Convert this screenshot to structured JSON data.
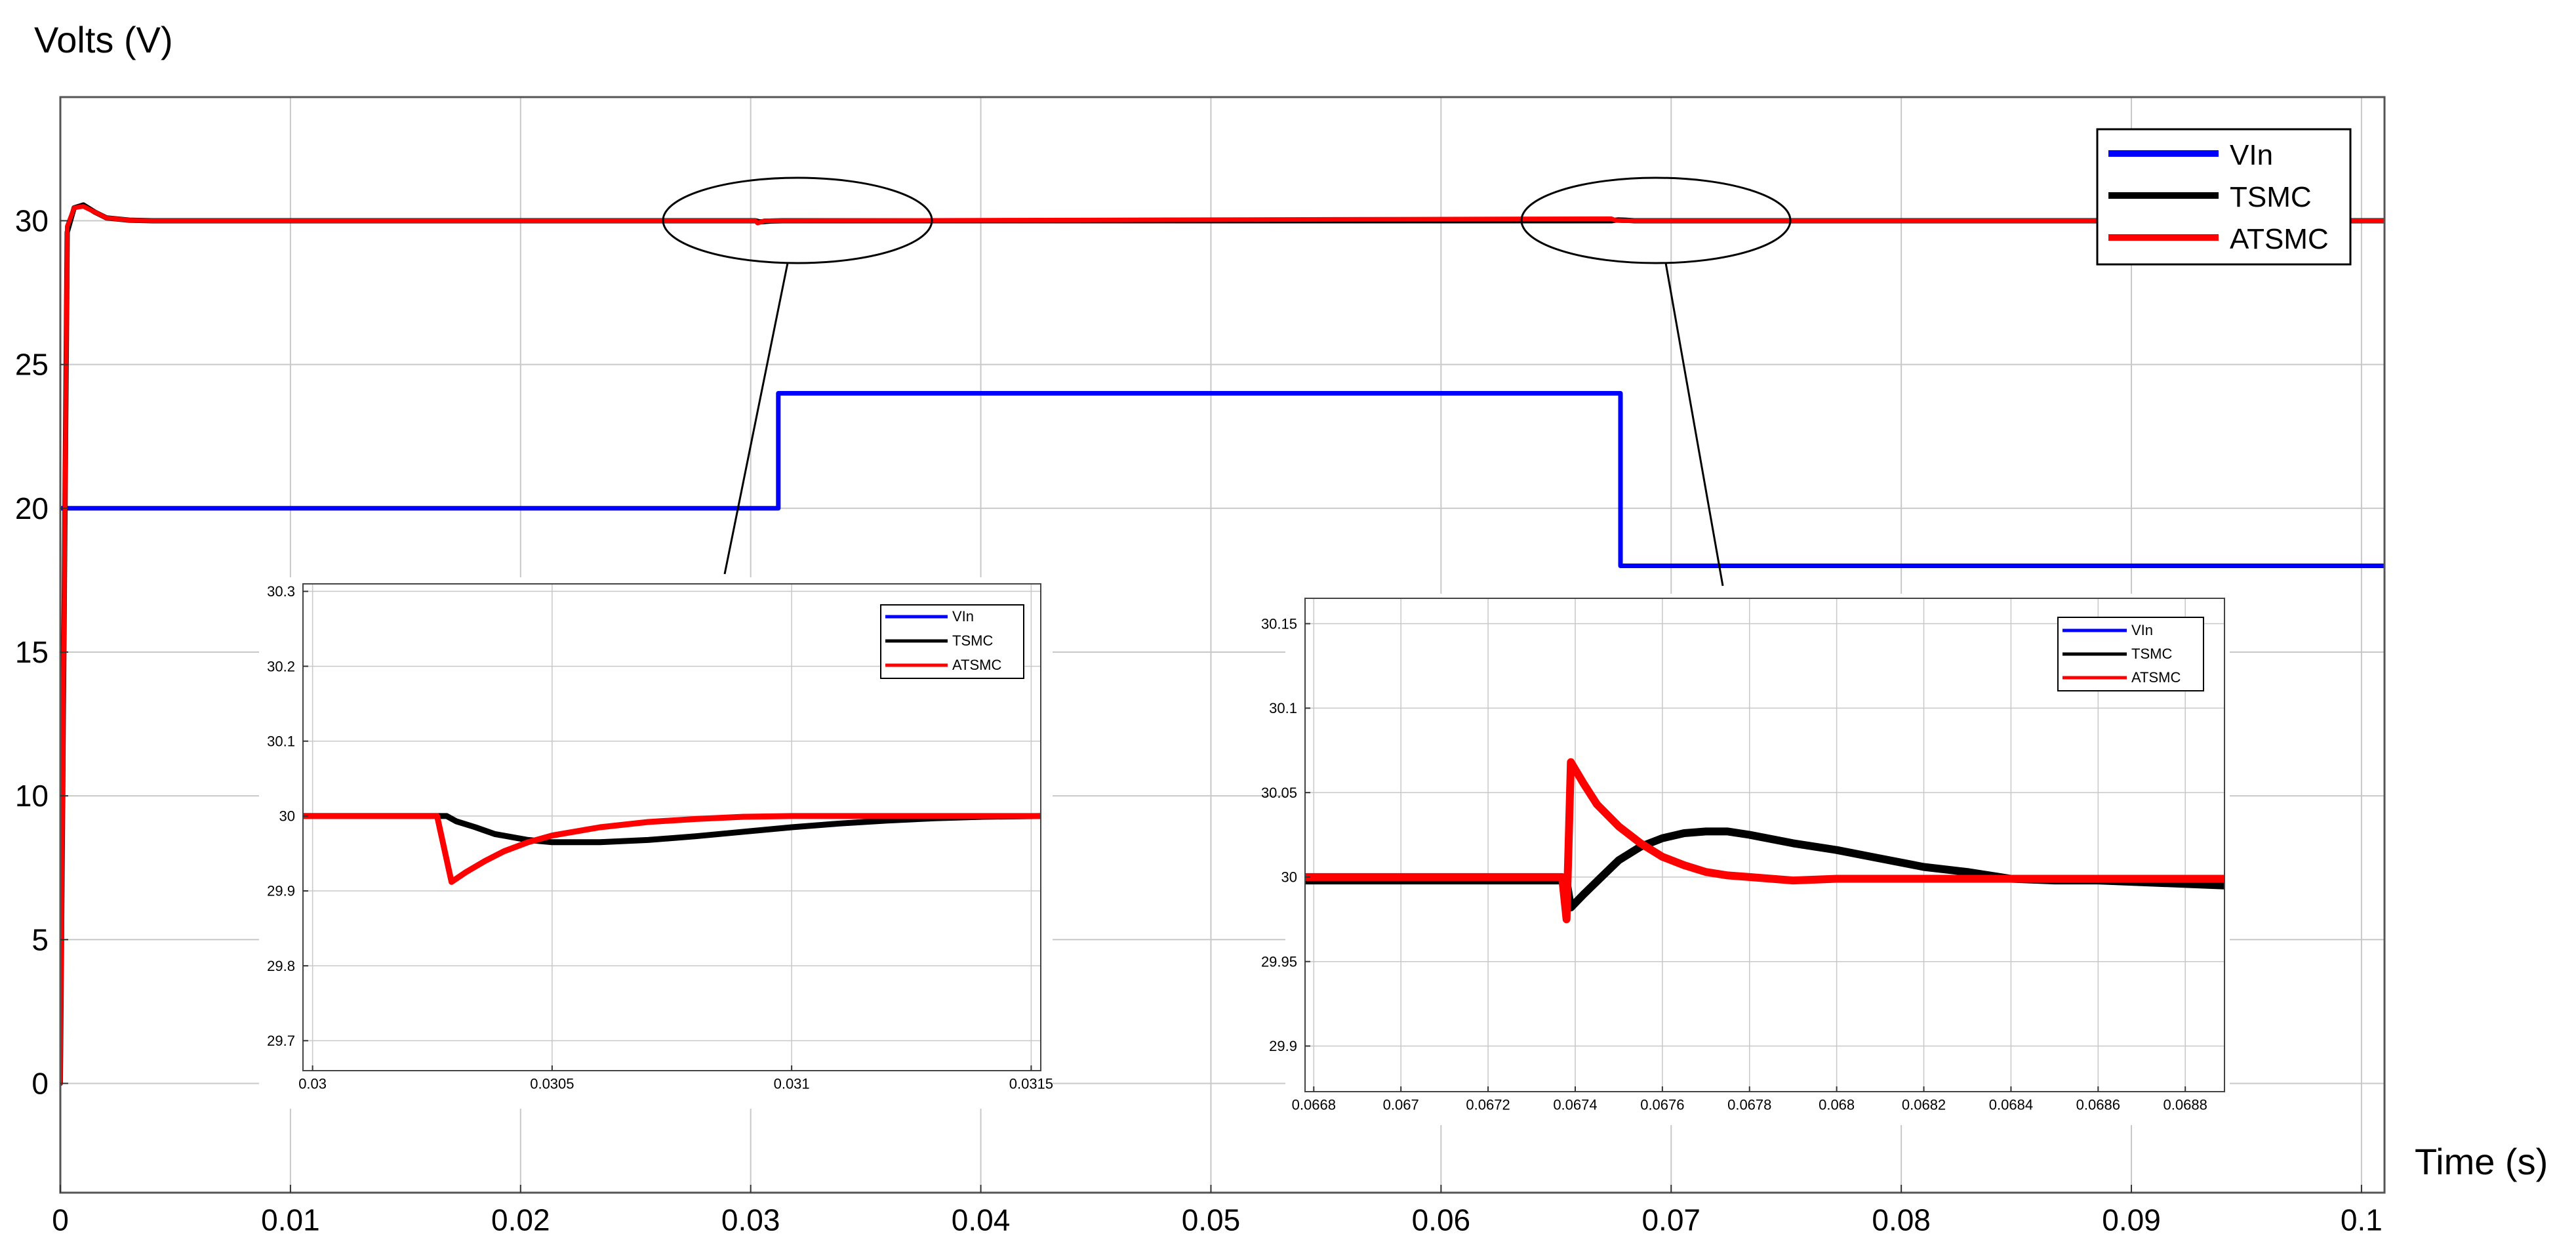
{
  "chart_data": [
    {
      "type": "line",
      "ylabel": "Volts (V)",
      "xlabel": "Time (s)",
      "xlim": [
        0,
        0.101
      ],
      "ylim": [
        -3.8,
        34.3
      ],
      "x_ticks": [
        0,
        0.01,
        0.02,
        0.03,
        0.04,
        0.05,
        0.06,
        0.07,
        0.08,
        0.09,
        0.1
      ],
      "x_tick_labels": [
        "0",
        "0.01",
        "0.02",
        "0.03",
        "0.04",
        "0.05",
        "0.06",
        "0.07",
        "0.08",
        "0.09",
        "0.1"
      ],
      "y_ticks": [
        0,
        5,
        10,
        15,
        20,
        25,
        30
      ],
      "y_tick_labels": [
        "0",
        "5",
        "10",
        "15",
        "20",
        "25",
        "30"
      ],
      "grid": true,
      "legend_position": "top-right",
      "series": [
        {
          "name": "VIn",
          "color": "#0000ff",
          "x": [
            0,
            0.0312,
            0.0312,
            0.0678,
            0.0678,
            0.101
          ],
          "y": [
            20,
            20,
            24,
            24,
            18,
            18
          ]
        },
        {
          "name": "TSMC",
          "color": "#000000",
          "x": [
            0,
            0.0003,
            0.0006,
            0.001,
            0.0015,
            0.002,
            0.003,
            0.004,
            0.0302,
            0.0304,
            0.0309,
            0.0314,
            0.0674,
            0.0677,
            0.068,
            0.0684,
            0.101
          ],
          "y": [
            0,
            29.6,
            30.45,
            30.55,
            30.3,
            30.1,
            30.02,
            30,
            30,
            29.96,
            29.99,
            30,
            30,
            30.03,
            30.02,
            30,
            30
          ]
        },
        {
          "name": "ATSMC",
          "color": "#ff0000",
          "x": [
            0,
            0.0003,
            0.0006,
            0.001,
            0.0015,
            0.002,
            0.003,
            0.004,
            0.0302,
            0.0303,
            0.0306,
            0.0674,
            0.0676,
            0.0679,
            0.101
          ],
          "y": [
            0,
            29.8,
            30.45,
            30.5,
            30.3,
            30.1,
            30.02,
            30,
            30,
            29.92,
            30,
            30.07,
            30.01,
            30,
            30
          ]
        }
      ]
    },
    {
      "type": "line",
      "title": "",
      "xlim": [
        0.02998,
        0.03152
      ],
      "ylim": [
        29.66,
        30.31
      ],
      "x_ticks": [
        0.03,
        0.0305,
        0.031,
        0.0315
      ],
      "x_tick_labels": [
        "0.03",
        "0.0305",
        "0.031",
        "0.0315"
      ],
      "y_ticks": [
        29.7,
        29.8,
        29.9,
        30,
        30.1,
        30.2,
        30.3
      ],
      "y_tick_labels": [
        "29.7",
        "29.8",
        "29.9",
        "30",
        "30.1",
        "30.2",
        "30.3"
      ],
      "grid": true,
      "legend_position": "top-right",
      "series": [
        {
          "name": "VIn",
          "color": "#0000ff",
          "x": [],
          "y": []
        },
        {
          "name": "TSMC",
          "color": "#000000",
          "x": [
            0.02998,
            0.03026,
            0.03028,
            0.0303,
            0.03034,
            0.03038,
            0.03045,
            0.0305,
            0.0306,
            0.0307,
            0.0308,
            0.0309,
            0.031,
            0.0311,
            0.0312,
            0.0313,
            0.0314,
            0.03152
          ],
          "y": [
            30,
            30,
            30.0,
            29.993,
            29.985,
            29.976,
            29.968,
            29.965,
            29.965,
            29.968,
            29.973,
            29.979,
            29.985,
            29.99,
            29.994,
            29.997,
            29.999,
            30
          ]
        },
        {
          "name": "ATSMC",
          "color": "#ff0000",
          "x": [
            0.02998,
            0.03026,
            0.03029,
            0.03032,
            0.03036,
            0.0304,
            0.03045,
            0.0305,
            0.0306,
            0.0307,
            0.0308,
            0.0309,
            0.031,
            0.0311,
            0.03152
          ],
          "y": [
            30,
            30,
            29.912,
            29.925,
            29.94,
            29.953,
            29.965,
            29.974,
            29.985,
            29.992,
            29.996,
            29.999,
            30,
            30,
            30
          ]
        }
      ]
    },
    {
      "type": "line",
      "title": "",
      "xlim": [
        0.06678,
        0.06889
      ],
      "ylim": [
        29.873,
        30.165
      ],
      "x_ticks": [
        0.0668,
        0.067,
        0.0672,
        0.0674,
        0.0676,
        0.0678,
        0.068,
        0.0682,
        0.0684,
        0.0686,
        0.0688
      ],
      "x_tick_labels": [
        "0.0668",
        "0.067",
        "0.0672",
        "0.0674",
        "0.0676",
        "0.0678",
        "0.068",
        "0.0682",
        "0.0684",
        "0.0686",
        "0.0688"
      ],
      "y_ticks": [
        29.9,
        29.95,
        30,
        30.05,
        30.1,
        30.15
      ],
      "y_tick_labels": [
        "29.9",
        "29.95",
        "30",
        "30.05",
        "30.1",
        "30.15"
      ],
      "grid": true,
      "legend_position": "top-right",
      "series": [
        {
          "name": "VIn",
          "color": "#0000ff",
          "x": [],
          "y": []
        },
        {
          "name": "TSMC",
          "color": "#000000",
          "x": [
            0.06678,
            0.06738,
            0.06739,
            0.06742,
            0.06746,
            0.0675,
            0.06755,
            0.0676,
            0.06765,
            0.0677,
            0.06775,
            0.0678,
            0.0679,
            0.068,
            0.0681,
            0.0682,
            0.0683,
            0.0684,
            0.0685,
            0.0686,
            0.0687,
            0.06889
          ],
          "y": [
            29.998,
            29.998,
            29.982,
            29.99,
            30.0,
            30.01,
            30.018,
            30.023,
            30.026,
            30.027,
            30.027,
            30.025,
            30.02,
            30.016,
            30.011,
            30.006,
            30.003,
            29.999,
            29.998,
            29.998,
            29.997,
            29.995
          ]
        },
        {
          "name": "ATSMC",
          "color": "#ff0000",
          "x": [
            0.06678,
            0.06737,
            0.06738,
            0.06739,
            0.06742,
            0.06745,
            0.0675,
            0.06755,
            0.0676,
            0.06765,
            0.0677,
            0.06775,
            0.0678,
            0.0679,
            0.068,
            0.06889
          ],
          "y": [
            30.0,
            30.0,
            29.975,
            30.068,
            30.055,
            30.043,
            30.03,
            30.02,
            30.012,
            30.007,
            30.003,
            30.001,
            30.0,
            29.998,
            29.999,
            29.999
          ]
        }
      ]
    }
  ]
}
